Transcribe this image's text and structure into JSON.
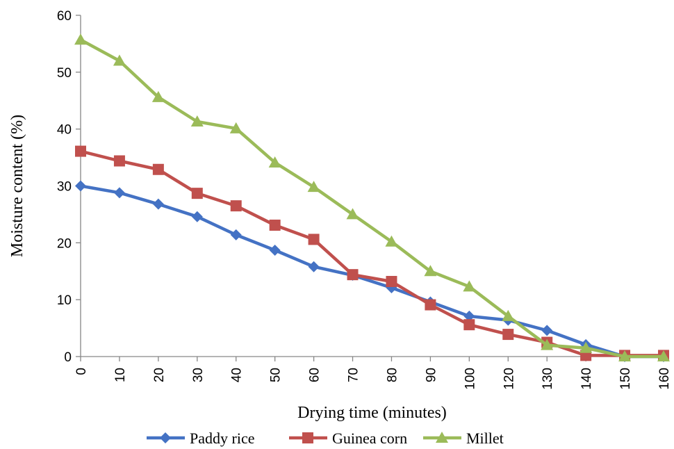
{
  "chart_data": {
    "type": "line",
    "xlabel": "Drying time (minutes)",
    "ylabel": "Moisture content (%)",
    "ylim": [
      0,
      60
    ],
    "yticks": [
      0,
      10,
      20,
      30,
      40,
      50,
      60
    ],
    "categories": [
      "0",
      "10",
      "20",
      "30",
      "40",
      "50",
      "60",
      "70",
      "80",
      "90",
      "100",
      "120",
      "130",
      "140",
      "150",
      "160"
    ],
    "legend_position": "bottom",
    "grid": false,
    "series": [
      {
        "name": "Paddy rice",
        "color": "#4472C4",
        "marker": "diamond",
        "values": [
          30,
          28.8,
          26.8,
          24.6,
          21.4,
          18.7,
          15.8,
          14.3,
          12.1,
          9.6,
          7.1,
          6.4,
          4.6,
          2.1,
          0,
          0
        ]
      },
      {
        "name": "Guinea corn",
        "color": "#C0504D",
        "marker": "square",
        "values": [
          36.1,
          34.4,
          32.9,
          28.7,
          26.5,
          23.1,
          20.6,
          14.4,
          13.2,
          9.1,
          5.6,
          3.9,
          2.5,
          0.2,
          0.2,
          0.2
        ]
      },
      {
        "name": "Millet",
        "color": "#9BBB59",
        "marker": "triangle",
        "values": [
          55.7,
          52,
          45.6,
          41.3,
          40.1,
          34.1,
          29.8,
          25,
          20.2,
          15,
          12.3,
          7.1,
          2,
          1.5,
          0,
          0
        ]
      }
    ]
  }
}
